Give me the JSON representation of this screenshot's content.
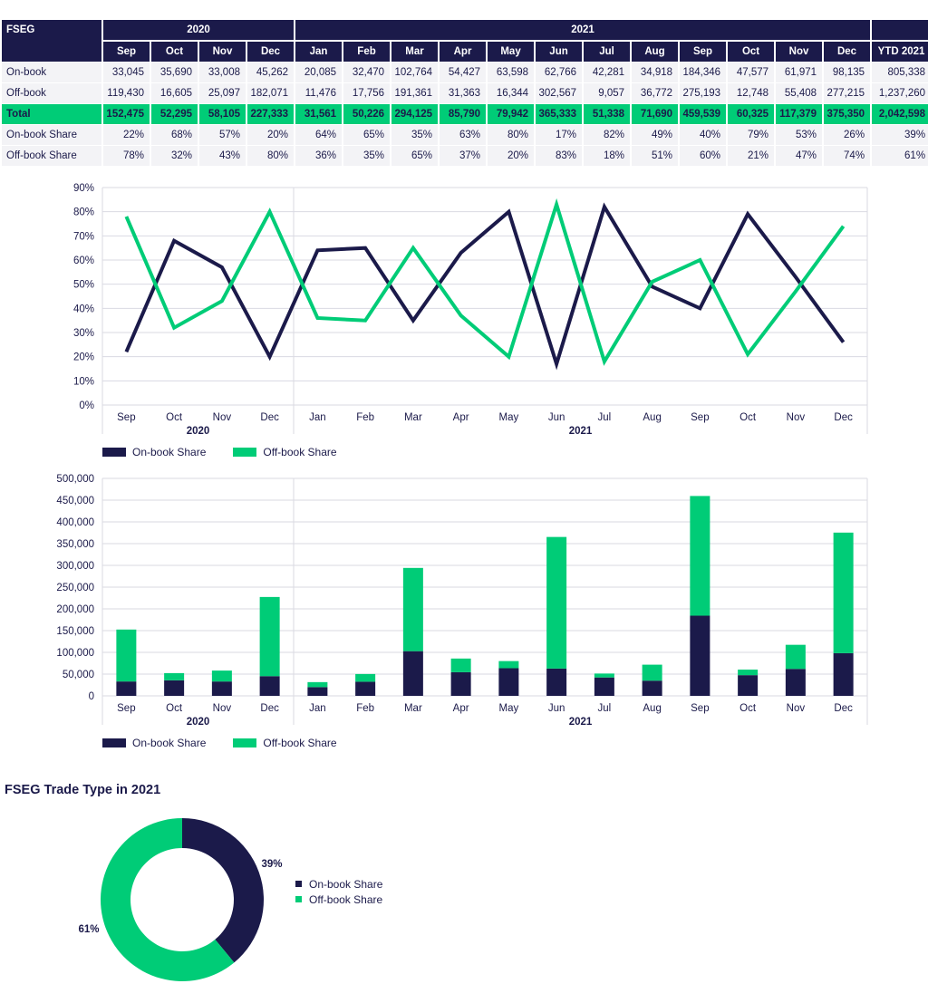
{
  "colors": {
    "dark": "#1b1a4a",
    "green": "#00cc77",
    "grid": "#dadae2",
    "row_bg": "#f3f3f6"
  },
  "table": {
    "corner": "FSEG",
    "year_2020": "2020",
    "year_2021": "2021",
    "months": [
      "Sep",
      "Oct",
      "Nov",
      "Dec",
      "Jan",
      "Feb",
      "Mar",
      "Apr",
      "May",
      "Jun",
      "Jul",
      "Aug",
      "Sep",
      "Oct",
      "Nov",
      "Dec"
    ],
    "ytd_header": "YTD 2021",
    "rows": [
      {
        "label": "On-book",
        "values": [
          "33,045",
          "35,690",
          "33,008",
          "45,262",
          "20,085",
          "32,470",
          "102,764",
          "54,427",
          "63,598",
          "62,766",
          "42,281",
          "34,918",
          "184,346",
          "47,577",
          "61,971",
          "98,135"
        ],
        "ytd": "805,338"
      },
      {
        "label": "Off-book",
        "values": [
          "119,430",
          "16,605",
          "25,097",
          "182,071",
          "11,476",
          "17,756",
          "191,361",
          "31,363",
          "16,344",
          "302,567",
          "9,057",
          "36,772",
          "275,193",
          "12,748",
          "55,408",
          "277,215"
        ],
        "ytd": "1,237,260"
      },
      {
        "label": "Total",
        "values": [
          "152,475",
          "52,295",
          "58,105",
          "227,333",
          "31,561",
          "50,226",
          "294,125",
          "85,790",
          "79,942",
          "365,333",
          "51,338",
          "71,690",
          "459,539",
          "60,325",
          "117,379",
          "375,350"
        ],
        "ytd": "2,042,598"
      },
      {
        "label": "On-book Share",
        "values": [
          "22%",
          "68%",
          "57%",
          "20%",
          "64%",
          "65%",
          "35%",
          "63%",
          "80%",
          "17%",
          "82%",
          "49%",
          "40%",
          "79%",
          "53%",
          "26%"
        ],
        "ytd": "39%"
      },
      {
        "label": "Off-book Share",
        "values": [
          "78%",
          "32%",
          "43%",
          "80%",
          "36%",
          "35%",
          "65%",
          "37%",
          "20%",
          "83%",
          "18%",
          "51%",
          "60%",
          "21%",
          "47%",
          "74%"
        ],
        "ytd": "61%"
      }
    ]
  },
  "chart_data": [
    {
      "type": "line",
      "categories": [
        "Sep",
        "Oct",
        "Nov",
        "Dec",
        "Jan",
        "Feb",
        "Mar",
        "Apr",
        "May",
        "Jun",
        "Jul",
        "Aug",
        "Sep",
        "Oct",
        "Nov",
        "Dec"
      ],
      "groups": [
        {
          "label": "2020",
          "count": 4
        },
        {
          "label": "2021",
          "count": 12
        }
      ],
      "series": [
        {
          "name": "On-book Share",
          "values": [
            22,
            68,
            57,
            20,
            64,
            65,
            35,
            63,
            80,
            17,
            82,
            49,
            40,
            79,
            53,
            26
          ]
        },
        {
          "name": "Off-book Share",
          "values": [
            78,
            32,
            43,
            80,
            36,
            35,
            65,
            37,
            20,
            83,
            18,
            51,
            60,
            21,
            47,
            74
          ]
        }
      ],
      "ylim": [
        0,
        90
      ],
      "yticks": [
        0,
        10,
        20,
        30,
        40,
        50,
        60,
        70,
        80,
        90
      ],
      "ytick_labels": [
        "0%",
        "10%",
        "20%",
        "30%",
        "40%",
        "50%",
        "60%",
        "70%",
        "80%",
        "90%"
      ],
      "legend": [
        "On-book Share",
        "Off-book Share"
      ]
    },
    {
      "type": "bar",
      "stacked": true,
      "categories": [
        "Sep",
        "Oct",
        "Nov",
        "Dec",
        "Jan",
        "Feb",
        "Mar",
        "Apr",
        "May",
        "Jun",
        "Jul",
        "Aug",
        "Sep",
        "Oct",
        "Nov",
        "Dec"
      ],
      "groups": [
        {
          "label": "2020",
          "count": 4
        },
        {
          "label": "2021",
          "count": 12
        }
      ],
      "series": [
        {
          "name": "On-book Share",
          "values": [
            33045,
            35690,
            33008,
            45262,
            20085,
            32470,
            102764,
            54427,
            63598,
            62766,
            42281,
            34918,
            184346,
            47577,
            61971,
            98135
          ]
        },
        {
          "name": "Off-book Share",
          "values": [
            119430,
            16605,
            25097,
            182071,
            11476,
            17756,
            191361,
            31363,
            16344,
            302567,
            9057,
            36772,
            275193,
            12748,
            55408,
            277215
          ]
        }
      ],
      "ylim": [
        0,
        500000
      ],
      "yticks": [
        0,
        50000,
        100000,
        150000,
        200000,
        250000,
        300000,
        350000,
        400000,
        450000,
        500000
      ],
      "ytick_labels": [
        "0",
        "50,000",
        "100,000",
        "150,000",
        "200,000",
        "250,000",
        "300,000",
        "350,000",
        "400,000",
        "450,000",
        "500,000"
      ],
      "legend": [
        "On-book Share",
        "Off-book Share"
      ]
    },
    {
      "type": "pie",
      "title": "FSEG Trade Type in 2021",
      "donut": true,
      "slices": [
        {
          "name": "On-book Share",
          "value": 39,
          "label": "39%"
        },
        {
          "name": "Off-book Share",
          "value": 61,
          "label": "61%"
        }
      ],
      "legend": [
        "On-book Share",
        "Off-book Share"
      ]
    }
  ]
}
